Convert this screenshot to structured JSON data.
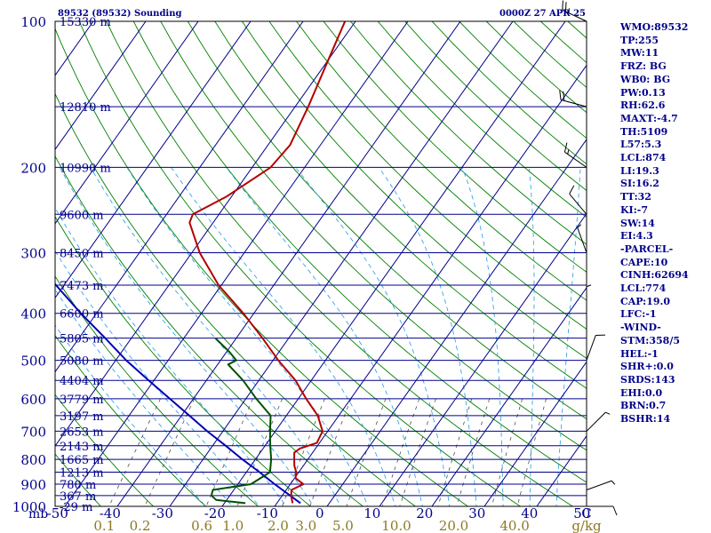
{
  "chart_data": {
    "type": "line",
    "title_left": "89532 (89532) Sounding",
    "title_right": "0000Z 27 APR 25",
    "axis_unit_label": "mb",
    "pressure_ticks": [
      100,
      200,
      300,
      400,
      500,
      600,
      700,
      800,
      900,
      1000
    ],
    "temperature_ticks": [
      -50,
      -40,
      -30,
      -20,
      -10,
      0,
      10,
      20,
      30,
      40,
      50
    ],
    "mixing_ratio_ticks": [
      "0.1",
      "0.2",
      "0.6",
      "1.0",
      "2.0",
      "3.0",
      "5.0",
      "10.0",
      "20.0",
      "40.0"
    ],
    "mixing_ratio_unit": "g/kg",
    "height_labels": [
      {
        "p": 100,
        "label": "15330 m"
      },
      {
        "p": 150,
        "label": "12810 m"
      },
      {
        "p": 200,
        "label": "10990 m"
      },
      {
        "p": 250,
        "label": "9600 m"
      },
      {
        "p": 300,
        "label": "8450 m"
      },
      {
        "p": 350,
        "label": "7473 m"
      },
      {
        "p": 400,
        "label": "6600 m"
      },
      {
        "p": 450,
        "label": "5805 m"
      },
      {
        "p": 500,
        "label": "5080 m"
      },
      {
        "p": 550,
        "label": "4404 m"
      },
      {
        "p": 600,
        "label": "3779 m"
      },
      {
        "p": 650,
        "label": "3197 m"
      },
      {
        "p": 700,
        "label": "2653 m"
      },
      {
        "p": 750,
        "label": "2143 m"
      },
      {
        "p": 800,
        "label": "1665 m"
      },
      {
        "p": 850,
        "label": "1213 m"
      },
      {
        "p": 900,
        "label": "780 m"
      },
      {
        "p": 950,
        "label": "367 m"
      },
      {
        "p": 1000,
        "label": "-29 m"
      }
    ],
    "temperature_profile": {
      "name": "Temperature",
      "color": "#b40000",
      "points": [
        [
          985,
          -7.0
        ],
        [
          950,
          -8.3
        ],
        [
          925,
          -9.0
        ],
        [
          900,
          -7.5
        ],
        [
          875,
          -9.8
        ],
        [
          850,
          -10.5
        ],
        [
          825,
          -11.7
        ],
        [
          800,
          -12.6
        ],
        [
          775,
          -13.5
        ],
        [
          760,
          -13.0
        ],
        [
          740,
          -10.5
        ],
        [
          700,
          -11.0
        ],
        [
          650,
          -14.0
        ],
        [
          600,
          -18.5
        ],
        [
          550,
          -23.0
        ],
        [
          500,
          -29.0
        ],
        [
          450,
          -35.0
        ],
        [
          400,
          -42.0
        ],
        [
          350,
          -50.5
        ],
        [
          300,
          -58.5
        ],
        [
          260,
          -64.5
        ],
        [
          250,
          -65.0
        ],
        [
          230,
          -61.0
        ],
        [
          200,
          -56.5
        ],
        [
          180,
          -55.8
        ],
        [
          150,
          -57.5
        ],
        [
          120,
          -60.0
        ],
        [
          100,
          -62.0
        ]
      ]
    },
    "dewpoint_profile": {
      "name": "Dewpoint",
      "color": "#005000",
      "points": [
        [
          985,
          -16.0
        ],
        [
          970,
          -22.0
        ],
        [
          950,
          -23.5
        ],
        [
          925,
          -24.0
        ],
        [
          900,
          -17.5
        ],
        [
          850,
          -15.5
        ],
        [
          800,
          -17.0
        ],
        [
          750,
          -19.0
        ],
        [
          700,
          -21.0
        ],
        [
          650,
          -23.0
        ],
        [
          600,
          -28.0
        ],
        [
          550,
          -33.0
        ],
        [
          510,
          -38.0
        ],
        [
          500,
          -37.0
        ],
        [
          480,
          -39.5
        ],
        [
          450,
          -44.0
        ]
      ]
    },
    "parcel_path": {
      "name": "Parcel",
      "color": "#0000b4",
      "points": [
        [
          985,
          -5.5
        ],
        [
          950,
          -8.5
        ],
        [
          900,
          -13.0
        ],
        [
          850,
          -17.5
        ],
        [
          800,
          -22.5
        ],
        [
          750,
          -27.5
        ],
        [
          700,
          -33.0
        ],
        [
          650,
          -38.5
        ],
        [
          600,
          -44.5
        ],
        [
          550,
          -51.0
        ],
        [
          500,
          -58.0
        ],
        [
          450,
          -65.0
        ],
        [
          400,
          -73.0
        ],
        [
          350,
          -81.5
        ],
        [
          300,
          -91.0
        ],
        [
          250,
          -101.0
        ],
        [
          200,
          -112.0
        ],
        [
          150,
          -125.0
        ],
        [
          120,
          -135.0
        ]
      ]
    },
    "wind_barbs": [
      {
        "p": 100,
        "dir": 295,
        "spd": 25
      },
      {
        "p": 150,
        "dir": 285,
        "spd": 20
      },
      {
        "p": 200,
        "dir": 305,
        "spd": 15
      },
      {
        "p": 250,
        "dir": 320,
        "spd": 10
      },
      {
        "p": 300,
        "dir": 340,
        "spd": 5
      },
      {
        "p": 400,
        "dir": 0,
        "spd": 5
      },
      {
        "p": 500,
        "dir": 20,
        "spd": 10
      },
      {
        "p": 700,
        "dir": 45,
        "spd": 5
      },
      {
        "p": 925,
        "dir": 70,
        "spd": 5
      },
      {
        "p": 1000,
        "dir": 90,
        "spd": 10
      }
    ],
    "xlim": [
      -50,
      50
    ],
    "ylim": [
      1050,
      100
    ],
    "log_pressure_axis": true,
    "colors": {
      "isobar": "#00008b",
      "isotherm": "#00008b",
      "dry_adiabat": "#008000",
      "moist_adiabat": "#1e9be6",
      "mixing_ratio": "#505050",
      "mixing_ratio_label": "#8c7823",
      "height_label": "#00008b",
      "axis_text": "#00008b"
    }
  },
  "indices": [
    "WMO:89532",
    "TP:255",
    "MW:11",
    "FRZ: BG",
    "WB0: BG",
    "PW:0.13",
    "RH:62.6",
    "MAXT:-4.7",
    "TH:5109",
    "L57:5.3",
    "LCL:874",
    "LI:19.3",
    "SI:16.2",
    "TT:32",
    "KI:-7",
    "SW:14",
    "EI:4.3",
    "-PARCEL-",
    "CAPE:10",
    "CINH:62694",
    "LCL:774",
    "CAP:19.0",
    "LFC:-1",
    "-WIND-",
    "STM:358/5",
    "HEL:-1",
    "SHR+:0.0",
    "SRDS:143",
    "EHI:0.0",
    "BRN:0.7",
    "BSHR:14"
  ]
}
